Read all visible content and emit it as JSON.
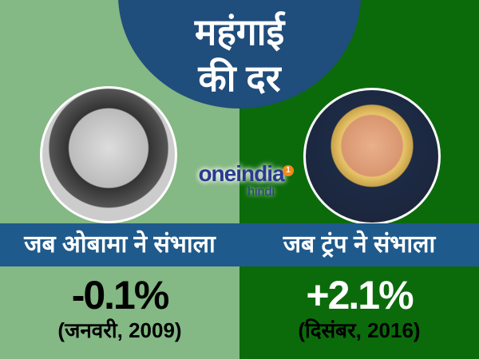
{
  "title": {
    "line1": "महंगाई",
    "line2": "की दर"
  },
  "logo": {
    "main": "oneindia",
    "sub": "hindi",
    "badge": "1"
  },
  "left": {
    "label": "जब ओबामा ने संभाला",
    "value": "-0.1%",
    "date": "(जनवरी, 2009)",
    "value_color": "#000000",
    "bg": "#84b884"
  },
  "right": {
    "label": "जब ट्रंप ने संभाला",
    "value": "+2.1%",
    "date": "(दिसंबर, 2016)",
    "value_color": "#ffffff",
    "bg": "#0b6b0b"
  },
  "colors": {
    "banner": "#1f5a8c",
    "title_circle": "#1f4d7c"
  }
}
